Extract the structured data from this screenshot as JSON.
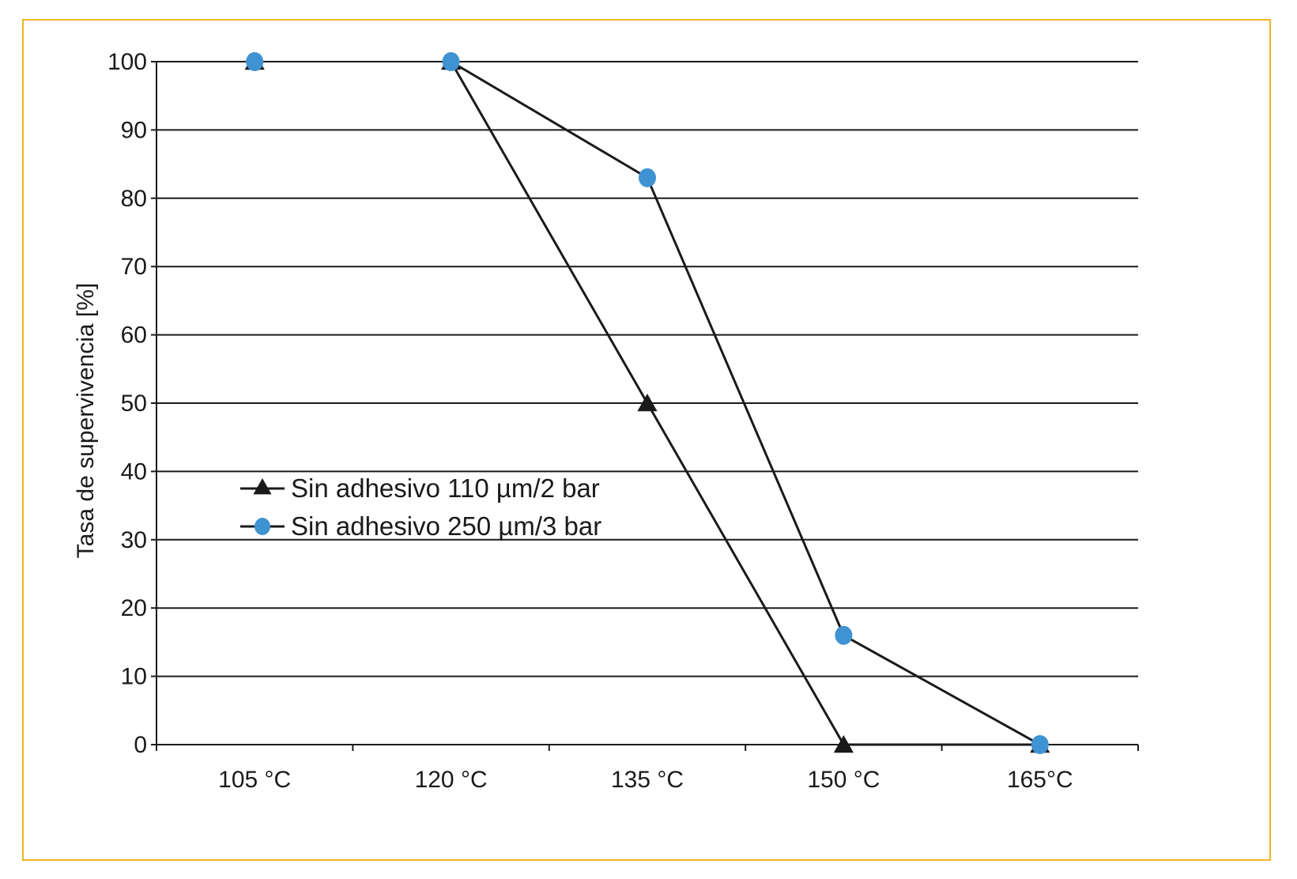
{
  "chart_data": {
    "type": "line",
    "categories": [
      "105 °C",
      "120 °C",
      "135 °C",
      "150 °C",
      "165°C"
    ],
    "ylabel": "Tasa de supervivencia [%]",
    "ylim": [
      0,
      100
    ],
    "yticks": [
      0,
      10,
      20,
      30,
      40,
      50,
      60,
      70,
      80,
      90,
      100
    ],
    "grid": true,
    "legend_position": "middle-left",
    "series": [
      {
        "name": "Sin adhesivo 110 µm/2 bar",
        "marker": "triangle",
        "color": "#1a1a1a",
        "values": [
          100,
          100,
          50,
          0,
          0
        ]
      },
      {
        "name": "Sin adhesivo 250 µm/3 bar",
        "marker": "circle",
        "color": "#3f93d2",
        "values": [
          100,
          100,
          83,
          16,
          0
        ]
      }
    ]
  },
  "colors": {
    "frame_border": "#f0b323",
    "line": "#1a1a1a",
    "circle_marker": "#3f93d2"
  }
}
